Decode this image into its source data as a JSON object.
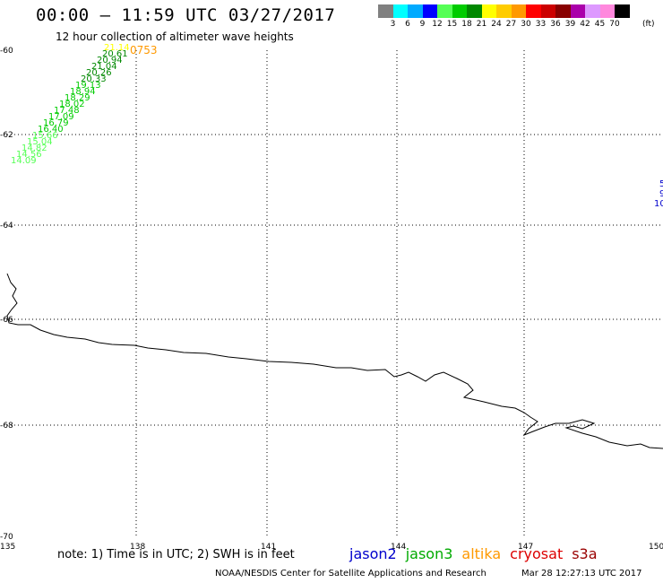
{
  "header": {
    "title": "00:00 – 11:59 UTC 03/27/2017",
    "subtitle": "12 hour collection of altimeter wave heights"
  },
  "colorbar": {
    "unit": "(ft)",
    "bins": [
      {
        "label": "3",
        "color": "#808080"
      },
      {
        "label": "6",
        "color": "#00ffff"
      },
      {
        "label": "9",
        "color": "#00aaff"
      },
      {
        "label": "12",
        "color": "#0000ff"
      },
      {
        "label": "15",
        "color": "#55ff55"
      },
      {
        "label": "18",
        "color": "#00cc00"
      },
      {
        "label": "21",
        "color": "#008800"
      },
      {
        "label": "24",
        "color": "#ffff00"
      },
      {
        "label": "27",
        "color": "#ffcc00"
      },
      {
        "label": "30",
        "color": "#ff9900"
      },
      {
        "label": "33",
        "color": "#ff0000"
      },
      {
        "label": "36",
        "color": "#cc0000"
      },
      {
        "label": "39",
        "color": "#880000"
      },
      {
        "label": "42",
        "color": "#aa00aa"
      },
      {
        "label": "45",
        "color": "#dd99ff"
      },
      {
        "label": "70",
        "color": "#ff88dd"
      },
      {
        "label": "",
        "color": "#000000"
      }
    ]
  },
  "map": {
    "lon_range": [
      135,
      150
    ],
    "lat_range": [
      -70,
      -60
    ],
    "lat_labels": [
      "-60",
      "-62",
      "-64",
      "-66",
      "-68",
      "-70"
    ],
    "lon_labels": [
      "135",
      "138",
      "141",
      "144",
      "147",
      "150"
    ]
  },
  "observations": {
    "time_label": "0753",
    "time_label_color": "#ff9900",
    "swh_track": [
      {
        "value": "21.14",
        "color": "#ffff00"
      },
      {
        "value": "20.61",
        "color": "#008800"
      },
      {
        "value": "20.94",
        "color": "#008800"
      },
      {
        "value": "21.04",
        "color": "#008800"
      },
      {
        "value": "20.26",
        "color": "#008800"
      },
      {
        "value": "20.33",
        "color": "#008800"
      },
      {
        "value": "19.13",
        "color": "#00cc00"
      },
      {
        "value": "18.94",
        "color": "#00cc00"
      },
      {
        "value": "18.29",
        "color": "#00cc00"
      },
      {
        "value": "18.02",
        "color": "#00cc00"
      },
      {
        "value": "17.48",
        "color": "#00cc00"
      },
      {
        "value": "17.09",
        "color": "#00cc00"
      },
      {
        "value": "16.79",
        "color": "#00cc00"
      },
      {
        "value": "16.40",
        "color": "#00cc00"
      },
      {
        "value": "15.66",
        "color": "#55ff55"
      },
      {
        "value": "15.04",
        "color": "#55ff55"
      },
      {
        "value": "14.82",
        "color": "#55ff55"
      },
      {
        "value": "14.56",
        "color": "#55ff55"
      },
      {
        "value": "14.09",
        "color": "#55ff55"
      }
    ],
    "edge_values": [
      {
        "value": "5",
        "color": "#0000cc"
      },
      {
        "value": "9",
        "color": "#0000cc"
      },
      {
        "value": "10",
        "color": "#0000cc"
      }
    ]
  },
  "footer": {
    "note": "note: 1) Time is in UTC; 2) SWH is in feet",
    "satellites": [
      {
        "name": "jason2",
        "color": "#0000cc"
      },
      {
        "name": "jason3",
        "color": "#00aa00"
      },
      {
        "name": "altika",
        "color": "#ff9900"
      },
      {
        "name": "cryosat",
        "color": "#dd0000"
      },
      {
        "name": "s3a",
        "color": "#990000"
      }
    ],
    "credit": "NOAA/NESDIS Center for Satellite Applications and Research",
    "timestamp": "Mar 28 12:27:13 UTC 2017"
  }
}
